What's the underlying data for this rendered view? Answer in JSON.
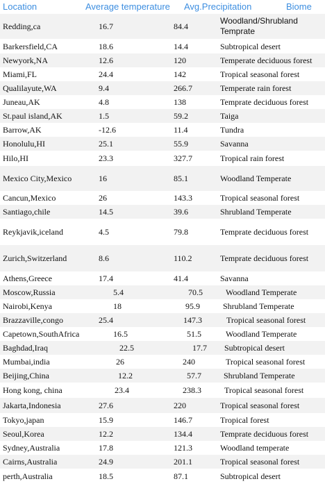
{
  "headers": {
    "location": "Location",
    "avg_temperature": "Average temperature",
    "avg_precipitation": "Avg.Precipitation",
    "biome": "Biome"
  },
  "rows": [
    {
      "location": "Redding,ca",
      "temperature": "16.7",
      "precipitation": "84.4",
      "biome": "Woodland/Shrubland Temprate"
    },
    {
      "location": "Barkersfield,CA",
      "temperature": "18.6",
      "precipitation": "14.4",
      "biome": "Subtropical desert"
    },
    {
      "location": "Newyork,NA",
      "temperature": "12.6",
      "precipitation": "120",
      "biome": "Temperate deciduous forest"
    },
    {
      "location": "Miami,FL",
      "temperature": "24.4",
      "precipitation": "142",
      "biome": "Tropical seasonal forest"
    },
    {
      "location": "Qualilayute,WA",
      "temperature": "9.4",
      "precipitation": "266.7",
      "biome": "Temperate rain forest"
    },
    {
      "location": "Juneau,AK",
      "temperature": "4.8",
      "precipitation": "138",
      "biome": "Temprate deciduous forest"
    },
    {
      "location": "St.paul island,AK",
      "temperature": "1.5",
      "precipitation": "59.2",
      "biome": "Taiga"
    },
    {
      "location": "Barrow,AK",
      "temperature": "-12.6",
      "precipitation": "11.4",
      "biome": "Tundra"
    },
    {
      "location": "Honolulu,HI",
      "temperature": "25.1",
      "precipitation": "55.9",
      "biome": "Savanna"
    },
    {
      "location": "Hilo,HI",
      "temperature": "23.3",
      "precipitation": "327.7",
      "biome": "Tropical rain forest"
    },
    {
      "location": "Mexico City,Mexico",
      "temperature": "16",
      "precipitation": "85.1",
      "biome": "Woodland Temperate"
    },
    {
      "location": "Cancun,Mexico",
      "temperature": "26",
      "precipitation": "143.3",
      "biome": "Tropical seasonal forest"
    },
    {
      "location": "Santiago,chile",
      "temperature": "14.5",
      "precipitation": "39.6",
      "biome": "Shrubland Temperate"
    },
    {
      "location": "Reykjavik,iceland",
      "temperature": "4.5",
      "precipitation": "79.8",
      "biome": "Temprate deciduous forest"
    },
    {
      "location": "Zurich,Switzerland",
      "temperature": "8.6",
      "precipitation": "110.2",
      "biome": "Temprate deciduous forest"
    },
    {
      "location": "Athens,Greece",
      "temperature": "17.4",
      "precipitation": "41.4",
      "biome": "Savanna"
    },
    {
      "location": "Moscow,Russia",
      "temperature": "5.4",
      "precipitation": "70.5",
      "biome": "Woodland Temperate"
    },
    {
      "location": "Nairobi,Kenya",
      "temperature": "18",
      "precipitation": "95.9",
      "biome": "Shrubland Temperate"
    },
    {
      "location": "Brazzaville,congo",
      "temperature": "25.4",
      "precipitation": "147.3",
      "biome": "Tropical seasonal forest"
    },
    {
      "location": "Capetown,SouthAfrica",
      "temperature": "16.5",
      "precipitation": "51.5",
      "biome": "Woodland Temperate"
    },
    {
      "location": "Baghdad,Iraq",
      "temperature": "22.5",
      "precipitation": "17.7",
      "biome": "Subtropical desert"
    },
    {
      "location": "Mumbai,india",
      "temperature": "26",
      "precipitation": "240",
      "biome": "Tropical seasonal forest"
    },
    {
      "location": "Beijing,China",
      "temperature": "12.2",
      "precipitation": "57.7",
      "biome": "Shrubland Temperate"
    },
    {
      "location": "Hong kong, china",
      "temperature": "23.4",
      "precipitation": "238.3",
      "biome": "Tropical seasonal forest"
    },
    {
      "location": "Jakarta,Indonesia",
      "temperature": "27.6",
      "precipitation": "220",
      "biome": "Tropical seasonal forest"
    },
    {
      "location": "Tokyo,japan",
      "temperature": "15.9",
      "precipitation": "146.7",
      "biome": "Tropical forest"
    },
    {
      "location": "Seoul,Korea",
      "temperature": "12.2",
      "precipitation": "134.4",
      "biome": "Temprate deciduous forest"
    },
    {
      "location": "Sydney,Australia",
      "temperature": "17.8",
      "precipitation": "121.3",
      "biome": "Woodland temperate"
    },
    {
      "location": "Cairns,Australia",
      "temperature": "24.9",
      "precipitation": "201.1",
      "biome": "Tropical seasonal forest"
    },
    {
      "location": "perth,Australia",
      "temperature": "18.5",
      "precipitation": "87.1",
      "biome": "Subtropical desert"
    }
  ]
}
